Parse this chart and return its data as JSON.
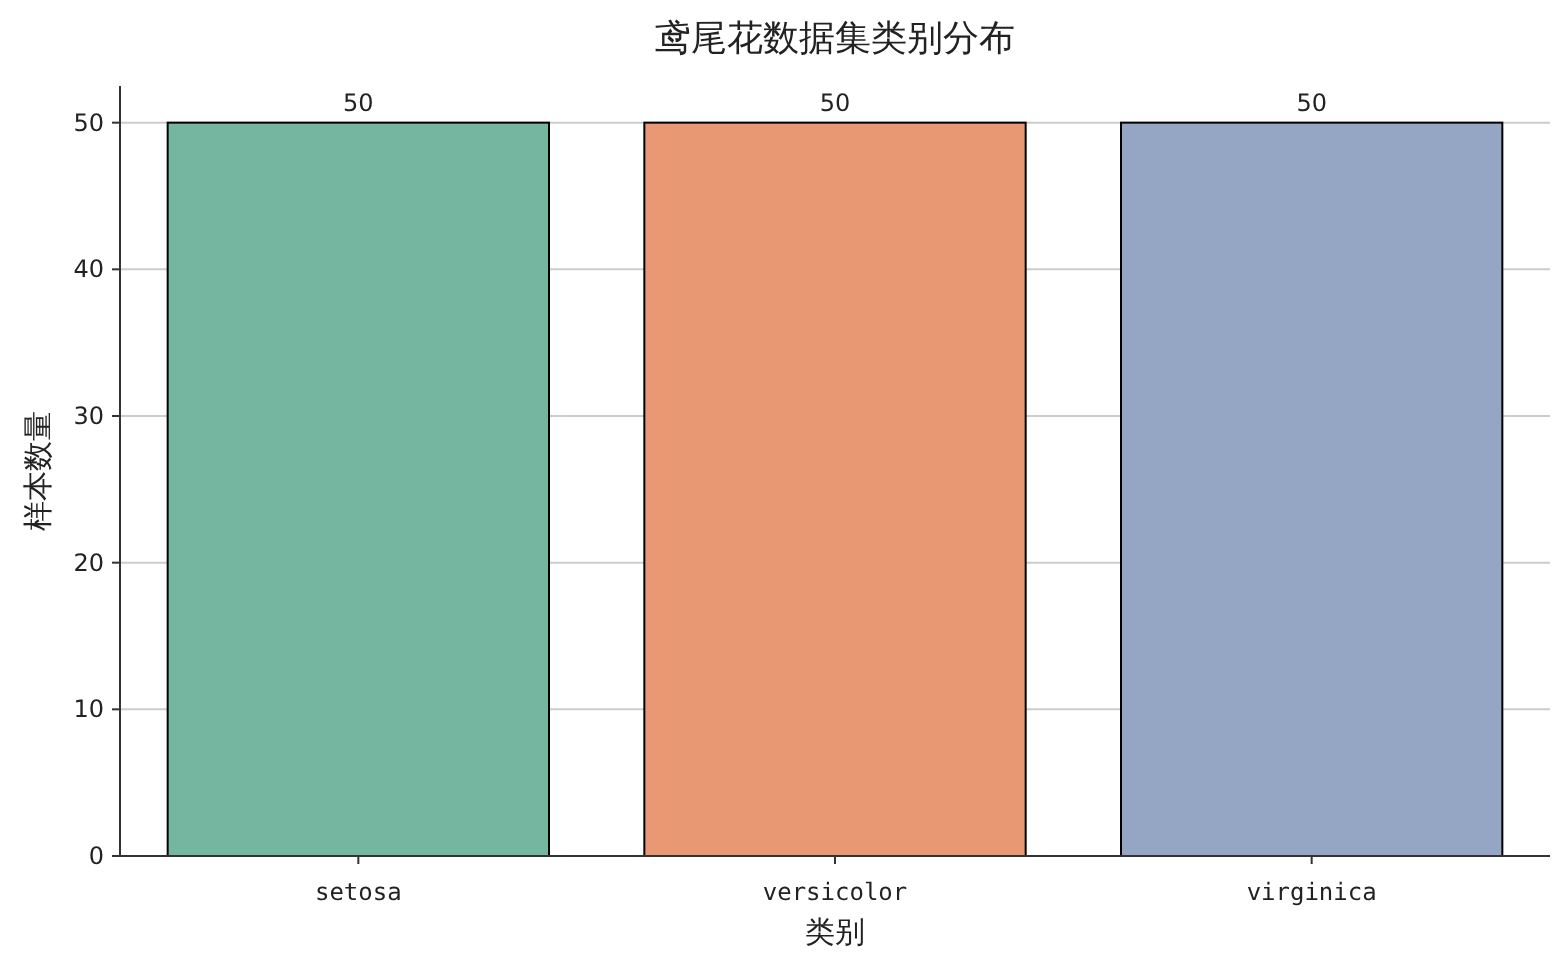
{
  "chart_data": {
    "type": "bar",
    "title": "鸢尾花数据集类别分布",
    "xlabel": "类别",
    "ylabel": "样本数量",
    "categories": [
      "setosa",
      "versicolor",
      "virginica"
    ],
    "values": [
      50,
      50,
      50
    ],
    "colors": [
      "#75b6a0",
      "#e99874",
      "#95a5c4"
    ],
    "ylim": [
      0,
      52.5
    ],
    "yticks": [
      0,
      10,
      20,
      30,
      40,
      50
    ],
    "grid": "y",
    "data_labels": true
  }
}
